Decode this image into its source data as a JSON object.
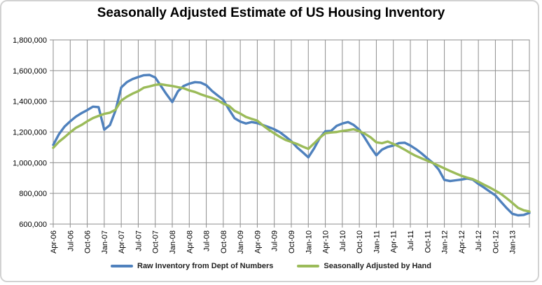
{
  "chart": {
    "title": "Seasonally Adjusted Estimate of US Housing Inventory"
  },
  "chart_data": {
    "type": "line",
    "title": "Seasonally Adjusted Estimate of US Housing Inventory",
    "xlabel": "",
    "ylabel": "",
    "ylim": [
      600000,
      1800000
    ],
    "y_tick_step": 200000,
    "y_tick_labels": [
      "1,800,000",
      "1,600,000",
      "1,400,000",
      "1,200,000",
      "1,000,000",
      "800,000",
      "600,000"
    ],
    "grid": true,
    "legend_position": "bottom",
    "x_tick_interval": 3,
    "x_tick_labels": [
      "Apr-06",
      "Jul-06",
      "Oct-06",
      "Jan-07",
      "Apr-07",
      "Jul-07",
      "Oct-07",
      "Jan-08",
      "Apr-08",
      "Jul-08",
      "Oct-08",
      "Jan-09",
      "Apr-09",
      "Jul-09",
      "Oct-09",
      "Jan-10",
      "Apr-10",
      "Jul-10",
      "Oct-10",
      "Jan-11",
      "Apr-11",
      "Jul-11",
      "Oct-11",
      "Jan-12",
      "Apr-12",
      "Jul-12",
      "Oct-12",
      "Jan-13"
    ],
    "categories": [
      "Apr-06",
      "May-06",
      "Jun-06",
      "Jul-06",
      "Aug-06",
      "Sep-06",
      "Oct-06",
      "Nov-06",
      "Dec-06",
      "Jan-07",
      "Feb-07",
      "Mar-07",
      "Apr-07",
      "May-07",
      "Jun-07",
      "Jul-07",
      "Aug-07",
      "Sep-07",
      "Oct-07",
      "Nov-07",
      "Dec-07",
      "Jan-08",
      "Feb-08",
      "Mar-08",
      "Apr-08",
      "May-08",
      "Jun-08",
      "Jul-08",
      "Aug-08",
      "Sep-08",
      "Oct-08",
      "Nov-08",
      "Dec-08",
      "Jan-09",
      "Feb-09",
      "Mar-09",
      "Apr-09",
      "May-09",
      "Jun-09",
      "Jul-09",
      "Aug-09",
      "Sep-09",
      "Oct-09",
      "Nov-09",
      "Dec-09",
      "Jan-10",
      "Feb-10",
      "Mar-10",
      "Apr-10",
      "May-10",
      "Jun-10",
      "Jul-10",
      "Aug-10",
      "Sep-10",
      "Oct-10",
      "Nov-10",
      "Dec-10",
      "Jan-11",
      "Feb-11",
      "Mar-11",
      "Apr-11",
      "May-11",
      "Jun-11",
      "Jul-11",
      "Aug-11",
      "Sep-11",
      "Oct-11",
      "Nov-11",
      "Dec-11",
      "Jan-12",
      "Feb-12",
      "Mar-12",
      "Apr-12",
      "May-12",
      "Jun-12",
      "Jul-12",
      "Aug-12",
      "Sep-12",
      "Oct-12",
      "Nov-12",
      "Dec-12",
      "Jan-13",
      "Feb-13",
      "Mar-13",
      "Apr-13"
    ],
    "series": [
      {
        "name": "Raw Inventory from Dept of Numbers",
        "color": "#4f81bd",
        "values": [
          1116000,
          1185000,
          1235000,
          1270000,
          1300000,
          1323000,
          1343000,
          1365000,
          1362000,
          1215000,
          1245000,
          1340000,
          1490000,
          1525000,
          1545000,
          1558000,
          1570000,
          1572000,
          1555000,
          1500000,
          1445000,
          1395000,
          1465000,
          1500000,
          1515000,
          1525000,
          1522000,
          1505000,
          1468000,
          1438000,
          1410000,
          1347000,
          1290000,
          1268000,
          1255000,
          1265000,
          1258000,
          1245000,
          1232000,
          1218000,
          1198000,
          1170000,
          1140000,
          1100000,
          1068000,
          1035000,
          1092000,
          1160000,
          1205000,
          1207000,
          1240000,
          1255000,
          1265000,
          1246000,
          1215000,
          1160000,
          1100000,
          1048000,
          1085000,
          1103000,
          1112000,
          1128000,
          1130000,
          1112000,
          1088000,
          1060000,
          1028000,
          998000,
          955000,
          888000,
          880000,
          885000,
          890000,
          897000,
          890000,
          862000,
          838000,
          812000,
          787000,
          745000,
          704000,
          667000,
          657000,
          660000,
          673000
        ]
      },
      {
        "name": "Seasonally Adjusted by Hand",
        "color": "#9bbb59",
        "values": [
          1097000,
          1136000,
          1166000,
          1198000,
          1227000,
          1246000,
          1270000,
          1291000,
          1305000,
          1318000,
          1326000,
          1345000,
          1405000,
          1430000,
          1450000,
          1466000,
          1489000,
          1497000,
          1507000,
          1511000,
          1505000,
          1500000,
          1492000,
          1485000,
          1471000,
          1461000,
          1446000,
          1433000,
          1422000,
          1407000,
          1385000,
          1370000,
          1338000,
          1320000,
          1298000,
          1286000,
          1274000,
          1243000,
          1215000,
          1191000,
          1168000,
          1148000,
          1135000,
          1122000,
          1105000,
          1090000,
          1125000,
          1162000,
          1192000,
          1197000,
          1200000,
          1207000,
          1212000,
          1218000,
          1205000,
          1188000,
          1165000,
          1133000,
          1127000,
          1138000,
          1122000,
          1105000,
          1085000,
          1063000,
          1044000,
          1028000,
          1013000,
          997000,
          980000,
          963000,
          946000,
          930000,
          915000,
          903000,
          893000,
          876000,
          857000,
          838000,
          818000,
          796000,
          768000,
          738000,
          706000,
          690000,
          682000
        ]
      }
    ],
    "style": {
      "gridline_color": "#8e8e8e",
      "axis_color": "#8e8e8e",
      "tick_label_color": "#000000",
      "title_color": "#000000",
      "background": "#ffffff"
    }
  }
}
